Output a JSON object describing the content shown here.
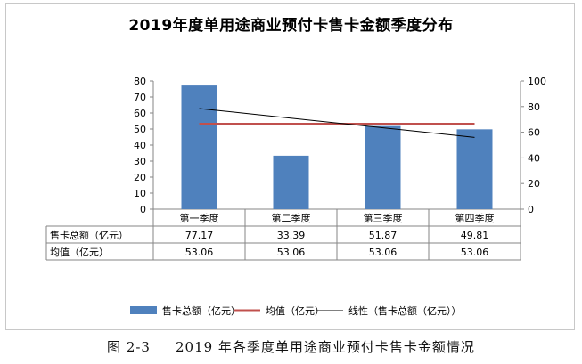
{
  "chart_data": {
    "type": "bar",
    "title": "2019年度单用途商业预付卡售卡金额季度分布",
    "categories": [
      "第一季度",
      "第二季度",
      "第三季度",
      "第四季度"
    ],
    "series": [
      {
        "name": "售卡总额（亿元）",
        "kind": "bar",
        "axis": "left",
        "values": [
          77.17,
          33.39,
          51.87,
          49.81
        ],
        "color": "#4f81bd"
      },
      {
        "name": "均值（亿元）",
        "kind": "line",
        "axis": "left",
        "values": [
          53.06,
          53.06,
          53.06,
          53.06
        ],
        "color": "#c0504d"
      },
      {
        "name": "线性（售卡总额（亿元））",
        "kind": "trendline",
        "axis": "right",
        "color": "#000000"
      }
    ],
    "trendline_right_values": [
      78.5,
      56
    ],
    "ylim_left": [
      0,
      80
    ],
    "yticks_left": [
      "80",
      "70",
      "60",
      "50",
      "40",
      "30",
      "20",
      "10",
      "0"
    ],
    "ylim_right": [
      0,
      100
    ],
    "yticks_right": [
      "100",
      "80",
      "60",
      "40",
      "20",
      "0"
    ],
    "table": {
      "rows": [
        {
          "label": "售卡总额（亿元）",
          "values": [
            "77.17",
            "33.39",
            "51.87",
            "49.81"
          ]
        },
        {
          "label": "均值（亿元）",
          "values": [
            "53.06",
            "53.06",
            "53.06",
            "53.06"
          ]
        }
      ]
    },
    "legend_position": "bottom",
    "grid": false
  },
  "caption": {
    "number": "图 2-3",
    "text": "2019 年各季度单用途商业预付卡售卡金额情况"
  }
}
